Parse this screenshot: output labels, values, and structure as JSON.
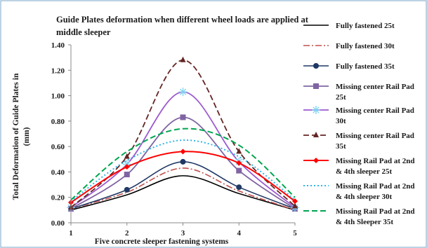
{
  "chart_data": {
    "type": "line",
    "title_lines": [
      "Guide Plates deformation when different wheel loads are applied at",
      "middle sleeper"
    ],
    "xlabel": "Five concrete sleeper fastening systems",
    "ylabel_lines": [
      "Total Deformation of Guide Plates  in",
      "(mm)"
    ],
    "x": [
      1,
      2,
      3,
      4,
      5
    ],
    "xlim": [
      1,
      5
    ],
    "ylim": [
      0,
      1.4
    ],
    "ytick_values": [
      0.0,
      0.2,
      0.4,
      0.6,
      0.8,
      1.0,
      1.2,
      1.4
    ],
    "ytick_labels": [
      "0.00",
      "0.20",
      "0.40",
      "0.60",
      "0.80",
      "1.00",
      "1.20",
      "1.40"
    ],
    "xtick_labels": [
      "1",
      "2",
      "3",
      "4",
      "5"
    ],
    "grid": false,
    "legend_position": "right",
    "series": [
      {
        "name_lines": [
          "Fully fastened 25t"
        ],
        "values": [
          0.1,
          0.22,
          0.37,
          0.23,
          0.1
        ],
        "color": "#000000",
        "dash": "solid",
        "marker": "none",
        "width": 1.6
      },
      {
        "name_lines": [
          "Fully fastened 30t"
        ],
        "values": [
          0.11,
          0.24,
          0.43,
          0.25,
          0.1
        ],
        "color": "#c0504d",
        "dash": "dashdot",
        "marker": "none",
        "width": 1.6
      },
      {
        "name_lines": [
          "Fully fastened 35t"
        ],
        "values": [
          0.11,
          0.26,
          0.48,
          0.28,
          0.11
        ],
        "color": "#1f3864",
        "dash": "solid",
        "marker": "circle",
        "width": 1.6
      },
      {
        "name_lines": [
          "Missing center Rail Pad",
          "25t"
        ],
        "values": [
          0.11,
          0.38,
          0.83,
          0.41,
          0.11
        ],
        "color": "#8064a2",
        "dash": "solid",
        "marker": "square",
        "width": 1.8
      },
      {
        "name_lines": [
          "Missing center Rail Pad",
          "30t"
        ],
        "values": [
          0.12,
          0.46,
          1.03,
          0.48,
          0.12
        ],
        "color": "#9b59d0",
        "dash": "solid",
        "marker": "star",
        "width": 1.8
      },
      {
        "name_lines": [
          "Missing center Rail Pad",
          "35t"
        ],
        "values": [
          0.12,
          0.52,
          1.28,
          0.56,
          0.13
        ],
        "color": "#632523",
        "dash": "dash",
        "marker": "triangle",
        "width": 1.8
      },
      {
        "name_lines": [
          "Missing Rail Pad at 2nd",
          "& 4th sleeper 25t"
        ],
        "values": [
          0.16,
          0.44,
          0.56,
          0.47,
          0.17
        ],
        "color": "#ff0000",
        "dash": "solid",
        "marker": "diamond",
        "width": 2.0
      },
      {
        "name_lines": [
          "Missing Rail Pad at 2nd",
          "& 4th sleeper 30t"
        ],
        "values": [
          0.17,
          0.49,
          0.65,
          0.52,
          0.18
        ],
        "color": "#2fb5e8",
        "dash": "dot",
        "marker": "none",
        "width": 2.0
      },
      {
        "name_lines": [
          "Missing Rail Pad at 2nd",
          "& 4th Sleeper 35t"
        ],
        "values": [
          0.18,
          0.56,
          0.74,
          0.61,
          0.2
        ],
        "color": "#00a550",
        "dash": "dash",
        "marker": "none",
        "width": 2.0
      }
    ]
  }
}
